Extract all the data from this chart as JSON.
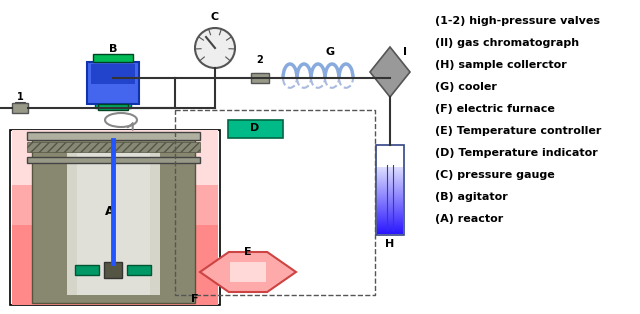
{
  "legend": [
    "(A) reactor",
    "(B) agitator",
    "(C) pressure gauge",
    "(D) Temperature indicator",
    "(E) Temperature controller",
    "(F) electric furnace",
    "(G) cooler",
    "(H) sample collerctor",
    "(II) gas chromatograph",
    "(1-2) high-pressure valves"
  ],
  "bg_color": "#ffffff",
  "pipe_color": "#333333",
  "pipe_lw": 1.5,
  "furnace_fill": "#ffb0b0",
  "furnace_edge": "#cc4444",
  "reactor_dark": "#888870",
  "reactor_inner_light": "#ccccbb",
  "agitator_blue": "#4466ee",
  "agitator_dark": "#2244cc",
  "green_cap": "#22bb44",
  "teal_green": "#00aa88",
  "gauge_fill": "#eeeeee",
  "valve_fill": "#999988",
  "valve_top_fill": "#777766",
  "cooler_color": "#88aadd",
  "diamond_fill": "#999999",
  "sample_top": "#ffffff",
  "sample_bot": "#2244cc",
  "hex_fill": "#ffaaaa",
  "hex_edge": "#cc4444",
  "dashed_color": "#555555",
  "flange_fill": "#aaaaaa",
  "flange_dark": "#888888"
}
